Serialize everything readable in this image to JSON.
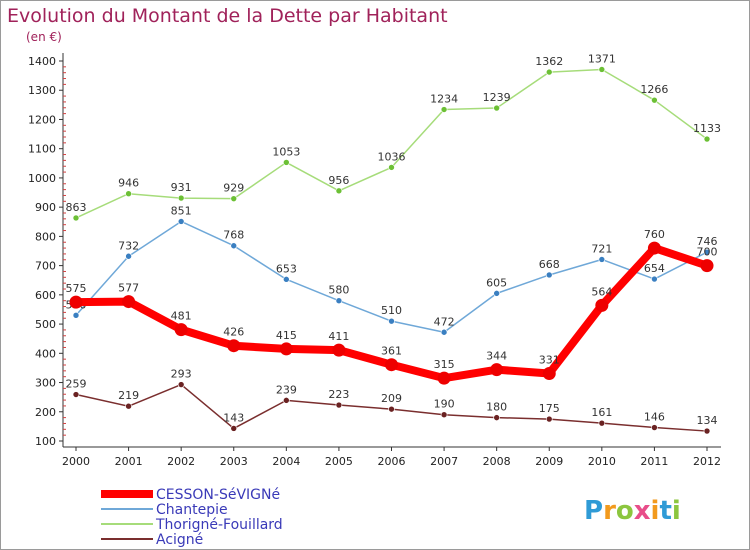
{
  "title": "Evolution du Montant de la Dette par Habitant",
  "subtitle": "(en €)",
  "logo": {
    "text": "Proxiti",
    "letters": [
      {
        "ch": "P",
        "color": "#2f9bd6"
      },
      {
        "ch": "r",
        "color": "#f29a1d"
      },
      {
        "ch": "o",
        "color": "#8cc63f"
      },
      {
        "ch": "x",
        "color": "#e84e8a"
      },
      {
        "ch": "i",
        "color": "#f29a1d"
      },
      {
        "ch": "t",
        "color": "#2f9bd6"
      },
      {
        "ch": "i",
        "color": "#8cc63f"
      }
    ]
  },
  "chart_data": {
    "type": "line",
    "title": "Evolution du Montant de la Dette par Habitant",
    "subtitle": "(en €)",
    "x": [
      2000,
      2001,
      2002,
      2003,
      2004,
      2005,
      2006,
      2007,
      2008,
      2009,
      2010,
      2011,
      2012
    ],
    "ylim": [
      100,
      1400
    ],
    "yticks": [
      100,
      200,
      300,
      400,
      500,
      600,
      700,
      800,
      900,
      1000,
      1100,
      1200,
      1300,
      1400
    ],
    "grid": "none",
    "legend_position": "bottom-left",
    "series": [
      {
        "name": "CESSON-SéVIGNé",
        "color": "#ff0000",
        "marker_color": "#ee0000",
        "emphasis": true,
        "values": [
          575,
          577,
          481,
          426,
          415,
          411,
          361,
          315,
          344,
          331,
          564,
          760,
          700
        ],
        "labels": [
          "575",
          "577",
          "481",
          "426",
          "415",
          "411",
          "361",
          "315",
          "344",
          "331",
          "564",
          "760",
          "700"
        ]
      },
      {
        "name": "Chantepie",
        "color": "#6fa8d8",
        "marker_color": "#3a7fc1",
        "emphasis": false,
        "values": [
          530,
          732,
          851,
          768,
          653,
          580,
          510,
          472,
          605,
          668,
          721,
          654,
          746
        ],
        "labels": [
          "530",
          "732",
          "851",
          "768",
          "653",
          "580",
          "510",
          "472",
          "605",
          "668",
          "721",
          "654",
          "746"
        ]
      },
      {
        "name": "Thorigné-Fouillard",
        "color": "#a6dc7a",
        "marker_color": "#6cc035",
        "emphasis": false,
        "values": [
          863,
          946,
          931,
          929,
          1053,
          956,
          1036,
          1234,
          1239,
          1362,
          1371,
          1266,
          1133
        ],
        "labels": [
          "863",
          "946",
          "931",
          "929",
          "1053",
          "956",
          "1036",
          "1234",
          "1239",
          "1362",
          "1371",
          "1266",
          "1133"
        ]
      },
      {
        "name": "Acigné",
        "color": "#7a2e2e",
        "marker_color": "#6a2222",
        "emphasis": false,
        "values": [
          259,
          219,
          293,
          143,
          239,
          223,
          209,
          190,
          180,
          175,
          161,
          146,
          134
        ],
        "labels": [
          "259",
          "219",
          "293",
          "143",
          "239",
          "223",
          "209",
          "190",
          "180",
          "175",
          "161",
          "146",
          "134"
        ]
      }
    ]
  }
}
